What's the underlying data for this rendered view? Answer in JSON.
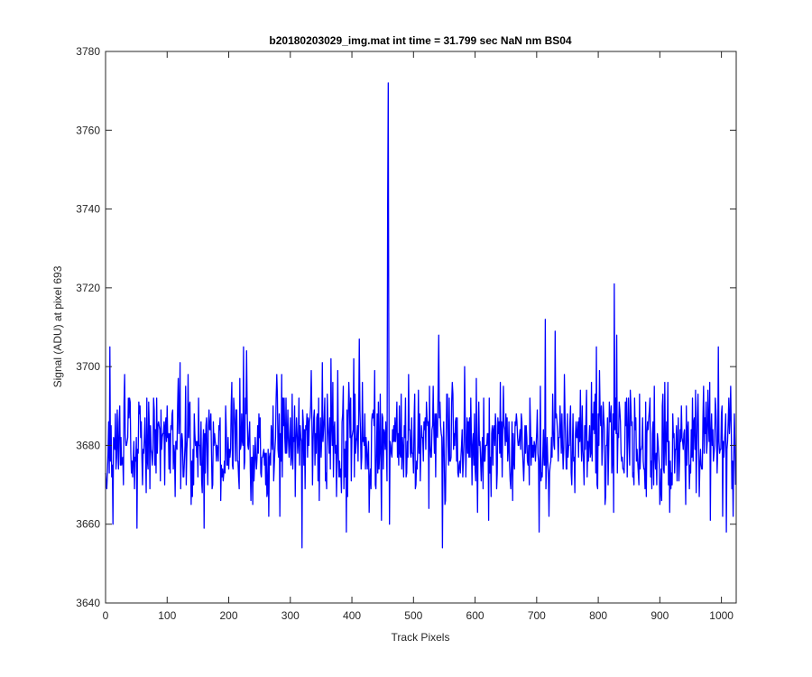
{
  "chart_data": {
    "type": "line",
    "title": "b20180203029_img.mat int time = 31.799 sec  NaN nm BS04",
    "xlabel": "Track Pixels",
    "ylabel": "Signal (ADU) at pixel 693",
    "xlim": [
      0,
      1024
    ],
    "ylim": [
      3640,
      3780
    ],
    "xticks": [
      0,
      100,
      200,
      300,
      400,
      500,
      600,
      700,
      800,
      900,
      1000
    ],
    "yticks": [
      3640,
      3660,
      3680,
      3700,
      3720,
      3740,
      3760,
      3780
    ],
    "grid": false,
    "series": [
      {
        "name": "",
        "color": "#0000ff",
        "noise": {
          "count": 1024,
          "mean": 3681,
          "amplitude": 14,
          "seed": 693
        },
        "points": [
          [
            1,
            3670
          ],
          [
            5,
            3686
          ],
          [
            7,
            3705
          ],
          [
            10,
            3672
          ],
          [
            12,
            3660
          ],
          [
            30,
            3691
          ],
          [
            51,
            3659
          ],
          [
            118,
            3697
          ],
          [
            134,
            3698
          ],
          [
            160,
            3659
          ],
          [
            224,
            3705
          ],
          [
            229,
            3704
          ],
          [
            265,
            3662
          ],
          [
            286,
            3698
          ],
          [
            319,
            3654
          ],
          [
            352,
            3701
          ],
          [
            358,
            3673
          ],
          [
            366,
            3702
          ],
          [
            375,
            3667
          ],
          [
            391,
            3658
          ],
          [
            403,
            3702
          ],
          [
            412,
            3707
          ],
          [
            428,
            3663
          ],
          [
            437,
            3699
          ],
          [
            448,
            3661
          ],
          [
            457,
            3671
          ],
          [
            458,
            3740
          ],
          [
            459,
            3772
          ],
          [
            460,
            3700
          ],
          [
            461,
            3660
          ],
          [
            492,
            3698
          ],
          [
            500,
            3673
          ],
          [
            541,
            3708
          ],
          [
            547,
            3654
          ],
          [
            552,
            3666
          ],
          [
            583,
            3700
          ],
          [
            626,
            3667
          ],
          [
            704,
            3658
          ],
          [
            714,
            3712
          ],
          [
            720,
            3662
          ],
          [
            730,
            3709
          ],
          [
            762,
            3668
          ],
          [
            797,
            3705
          ],
          [
            812,
            3667
          ],
          [
            826,
            3721
          ],
          [
            830,
            3708
          ],
          [
            876,
            3669
          ],
          [
            900,
            3665
          ],
          [
            982,
            3661
          ],
          [
            995,
            3705
          ],
          [
            1002,
            3662
          ],
          [
            1008,
            3658
          ],
          [
            1015,
            3695
          ],
          [
            1019,
            3662
          ],
          [
            1023,
            3670
          ]
        ]
      }
    ]
  }
}
